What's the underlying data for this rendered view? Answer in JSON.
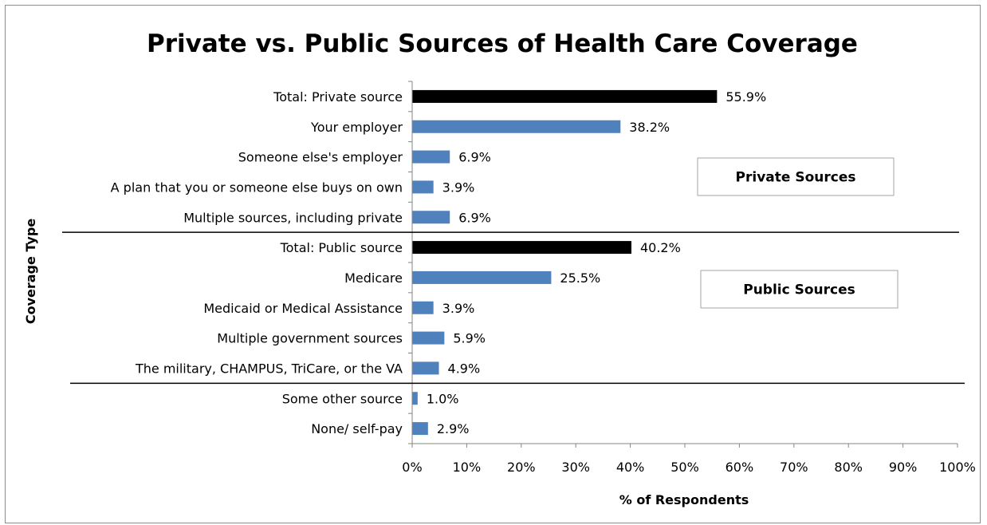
{
  "chart_data": {
    "type": "bar",
    "orientation": "horizontal",
    "title": "Private vs. Public Sources of Health Care Coverage",
    "xlabel": "% of Respondents",
    "ylabel": "Coverage Type",
    "xlim": [
      0,
      100
    ],
    "x_ticks": [
      "0%",
      "10%",
      "20%",
      "30%",
      "40%",
      "50%",
      "60%",
      "70%",
      "80%",
      "90%",
      "100%"
    ],
    "grid": false,
    "categories": [
      "Total: Private source",
      "Your employer",
      "Someone else's employer",
      "A plan that you or someone else buys on own",
      "Multiple sources, including private",
      "Total: Public source",
      "Medicare",
      "Medicaid or Medical Assistance",
      "Multiple government sources",
      "The military, CHAMPUS, TriCare, or the VA",
      "Some other source",
      "None/ self-pay"
    ],
    "values": [
      55.9,
      38.2,
      6.9,
      3.9,
      6.9,
      40.2,
      25.5,
      3.9,
      5.9,
      4.9,
      1.0,
      2.9
    ],
    "data_labels": [
      "55.9%",
      "38.2%",
      "6.9%",
      "3.9%",
      "6.9%",
      "40.2%",
      "25.5%",
      "3.9%",
      "5.9%",
      "4.9%",
      "1.0%",
      "2.9%"
    ],
    "bar_colors": [
      "#000000",
      "#4f81bd",
      "#4f81bd",
      "#4f81bd",
      "#4f81bd",
      "#000000",
      "#4f81bd",
      "#4f81bd",
      "#4f81bd",
      "#4f81bd",
      "#4f81bd",
      "#4f81bd"
    ],
    "annotations": [
      {
        "label": "Private Sources"
      },
      {
        "label": "Public Sources"
      }
    ]
  }
}
